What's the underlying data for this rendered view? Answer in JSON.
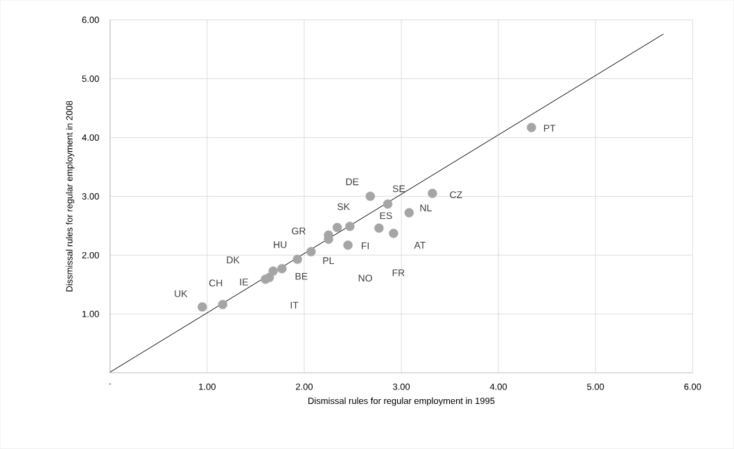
{
  "chart_data": {
    "type": "scatter",
    "xlabel": "Dismissal rules for regular employment in 1995",
    "ylabel": "Dissmissal rules for regular employment in 2008",
    "xlim": [
      0,
      6
    ],
    "ylim": [
      0,
      6
    ],
    "xticks": [
      {
        "value": 0,
        "label": "."
      },
      {
        "value": 1,
        "label": "1.00"
      },
      {
        "value": 2,
        "label": "2.00"
      },
      {
        "value": 3,
        "label": "3.00"
      },
      {
        "value": 4,
        "label": "4.00"
      },
      {
        "value": 5,
        "label": "5.00"
      },
      {
        "value": 6,
        "label": "6.00"
      }
    ],
    "yticks": [
      {
        "value": 1,
        "label": "1.00"
      },
      {
        "value": 2,
        "label": "2.00"
      },
      {
        "value": 3,
        "label": "3.00"
      },
      {
        "value": 4,
        "label": "4.00"
      },
      {
        "value": 5,
        "label": "5.00"
      },
      {
        "value": 6,
        "label": "6.00"
      }
    ],
    "grid": true,
    "marker": "circle",
    "series": [
      {
        "color": "#a5a5a5",
        "x": [
          0.95,
          1.16,
          1.6,
          1.64,
          1.68,
          1.77,
          1.93,
          2.07,
          2.25,
          2.25,
          2.34,
          2.47,
          2.45,
          2.68,
          2.86,
          2.77,
          2.92,
          3.08,
          3.32,
          4.34
        ],
        "values": [
          1.12,
          1.16,
          1.59,
          1.62,
          1.73,
          1.77,
          1.93,
          2.06,
          2.34,
          2.27,
          2.47,
          2.49,
          2.17,
          3.0,
          2.87,
          2.46,
          2.37,
          2.72,
          3.05,
          4.17
        ]
      },
      {
        "type": "line",
        "color": "#000000",
        "marker": "none",
        "x": [
          0,
          5.7
        ],
        "values": [
          0.01,
          5.76
        ]
      }
    ],
    "annotations": [
      {
        "text": "UK",
        "x": 0.95,
        "y": 1.12
      },
      {
        "text": "CH",
        "x": 1.16,
        "y": 1.16
      },
      {
        "text": "IE",
        "x": 1.6,
        "y": 1.59
      },
      "IT",
      "DK",
      {
        "text": "BE",
        "x": 1.77,
        "y": 1.77
      },
      {
        "text": "HU",
        "x": 1.93,
        "y": 1.93
      },
      {
        "text": "PL",
        "x": 2.07,
        "y": 2.06
      },
      {
        "text": "GR",
        "x": 2.25,
        "y": 2.34
      },
      "NO",
      {
        "text": "SK",
        "x": 2.34,
        "y": 2.47
      },
      "FR",
      {
        "text": "FI",
        "x": 2.45,
        "y": 2.17
      },
      {
        "text": "DE",
        "x": 2.68,
        "y": 3.0
      },
      {
        "text": "SE",
        "x": 2.86,
        "y": 2.87
      },
      {
        "text": "ES",
        "x": 2.77,
        "y": 2.46
      },
      {
        "text": "AT",
        "x": 2.92,
        "y": 2.37
      },
      {
        "text": "NL",
        "x": 3.08,
        "y": 2.72
      },
      {
        "text": "CZ",
        "x": 3.32,
        "y": 3.05
      },
      {
        "text": "PT",
        "x": 4.34,
        "y": 4.17
      }
    ]
  }
}
